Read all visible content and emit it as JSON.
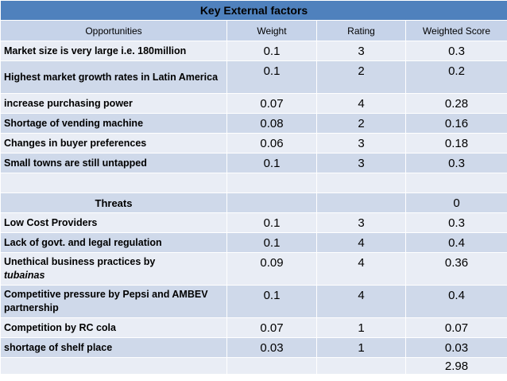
{
  "title": "Key External factors",
  "headers": {
    "factor": "Opportunities",
    "weight": "Weight",
    "rating": "Rating",
    "score": "Weighted Score"
  },
  "opportunities": [
    {
      "factor": "Market size is very large i.e. 180million",
      "weight": "0.1",
      "rating": "3",
      "score": "0.3"
    },
    {
      "factor": "Highest market growth rates in Latin America",
      "weight": "0.1",
      "rating": "2",
      "score": "0.2"
    },
    {
      "factor": "increase purchasing power",
      "weight": "0.07",
      "rating": "4",
      "score": "0.28"
    },
    {
      "factor": "Shortage of vending machine",
      "weight": "0.08",
      "rating": "2",
      "score": "0.16"
    },
    {
      "factor": "Changes in buyer preferences",
      "weight": "0.06",
      "rating": "3",
      "score": "0.18"
    },
    {
      "factor": "Small towns are still untapped",
      "weight": "0.1",
      "rating": "3",
      "score": "0.3"
    }
  ],
  "threats_header": {
    "label": "Threats",
    "score": "0"
  },
  "threats": [
    {
      "factor": "Low Cost Providers",
      "weight": "0.1",
      "rating": "3",
      "score": "0.3"
    },
    {
      "factor": "Lack of govt. and legal regulation",
      "weight": "0.1",
      "rating": "4",
      "score": "0.4"
    },
    {
      "factor_main": "Unethical business practices by",
      "factor_italic": "tubainas",
      "weight": "0.09",
      "rating": "4",
      "score": "0.36"
    },
    {
      "factor": "Competitive pressure by Pepsi and AMBEV partnership",
      "weight": "0.1",
      "rating": "4",
      "score": "0.4"
    },
    {
      "factor": "Competition by RC cola",
      "weight": "0.07",
      "rating": "1",
      "score": "0.07"
    },
    {
      "factor": "shortage of shelf place",
      "weight": "0.03",
      "rating": "1",
      "score": "0.03"
    }
  ],
  "total": {
    "score": "2.98"
  }
}
